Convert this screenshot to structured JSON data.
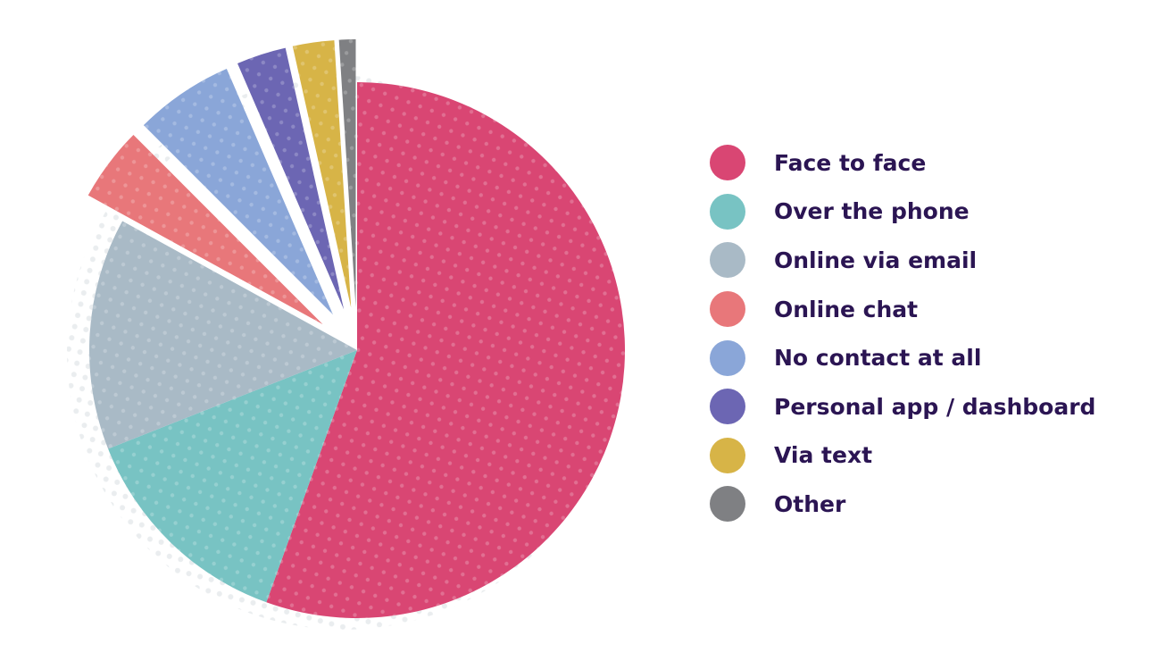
{
  "chart_data": {
    "type": "pie",
    "categories": [
      "Face to face",
      "Over the phone",
      "Online via email",
      "Online chat",
      "No contact at all",
      "Personal app / dashboard",
      "Via text",
      "Other"
    ],
    "values": [
      55.5,
      13.5,
      14.0,
      4.5,
      6.0,
      3.0,
      2.5,
      1.0
    ],
    "colors": [
      "#d94673",
      "#78c3c3",
      "#a9bac6",
      "#e8777a",
      "#8aa6d8",
      "#6c66b3",
      "#d7b447",
      "#7f8083"
    ],
    "exploded": [
      false,
      false,
      false,
      true,
      true,
      true,
      true,
      true
    ],
    "legend_position": "right"
  }
}
